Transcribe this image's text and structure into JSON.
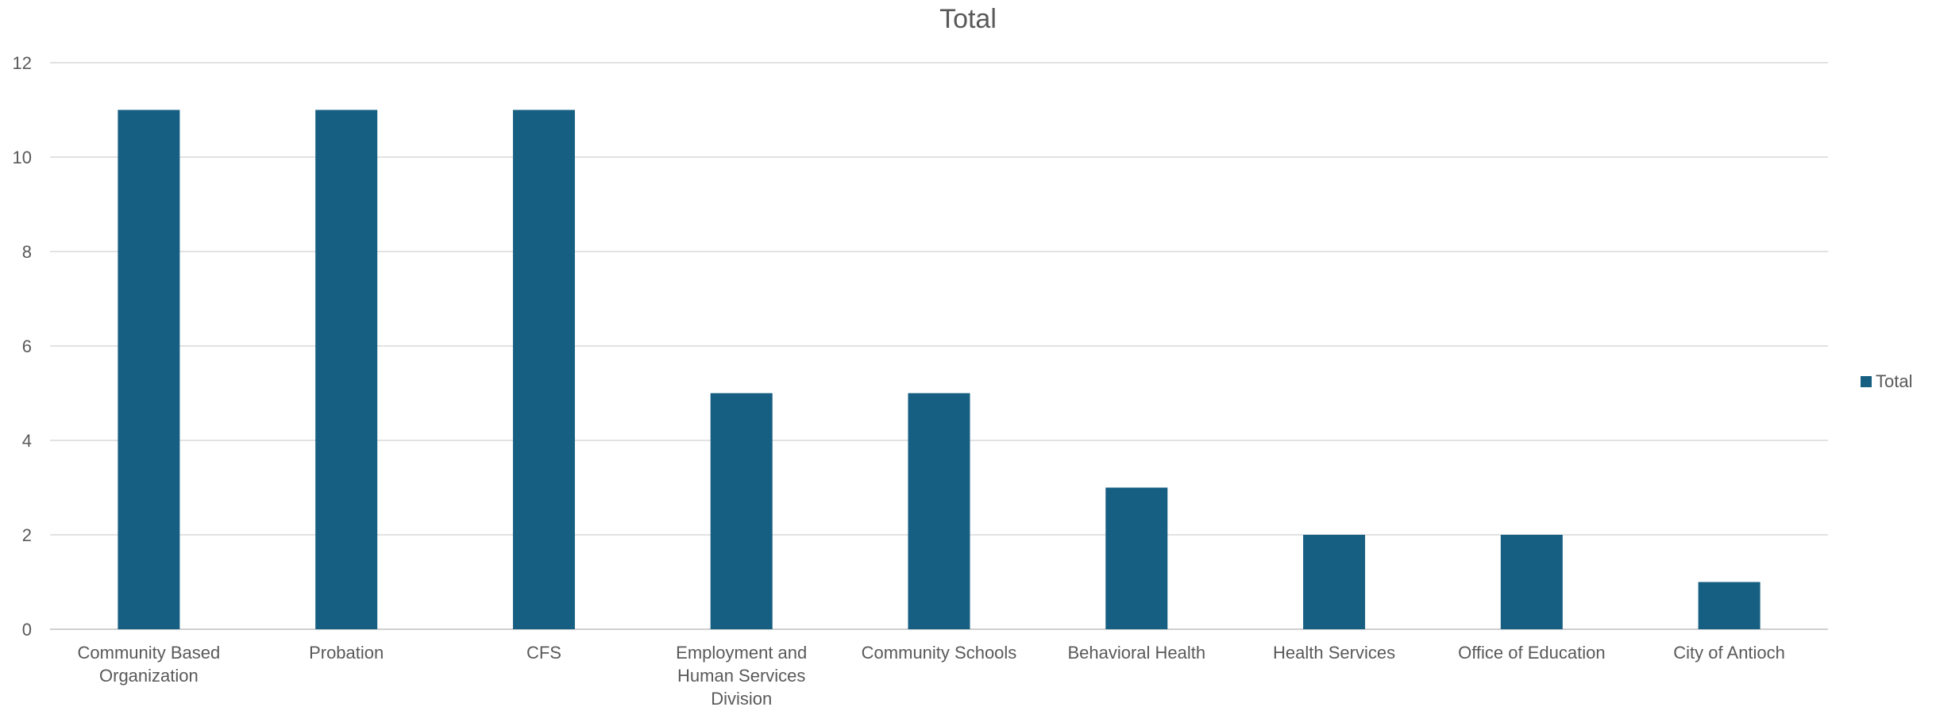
{
  "chart_data": {
    "type": "bar",
    "title": "Total",
    "xlabel": "",
    "ylabel": "",
    "categories": [
      "Community Based Organization",
      "Probation",
      "CFS",
      "Employment and Human Services Division",
      "Community Schools",
      "Behavioral Health",
      "Health Services",
      "Office of Education",
      "City of Antioch"
    ],
    "category_lines": [
      [
        "Community Based",
        "Organization"
      ],
      [
        "Probation"
      ],
      [
        "CFS"
      ],
      [
        "Employment and",
        "Human Services",
        "Division"
      ],
      [
        "Community Schools"
      ],
      [
        "Behavioral Health"
      ],
      [
        "Health Services"
      ],
      [
        "Office of Education"
      ],
      [
        "City of Antioch"
      ]
    ],
    "series": [
      {
        "name": "Total",
        "values": [
          11,
          11,
          11,
          5,
          5,
          3,
          2,
          2,
          1
        ],
        "color": "#175f82"
      }
    ],
    "ylim": [
      0,
      12
    ],
    "yticks": [
      0,
      2,
      4,
      6,
      8,
      10,
      12
    ],
    "grid": true,
    "legend": {
      "position": "right",
      "entries": [
        "Total"
      ]
    }
  }
}
